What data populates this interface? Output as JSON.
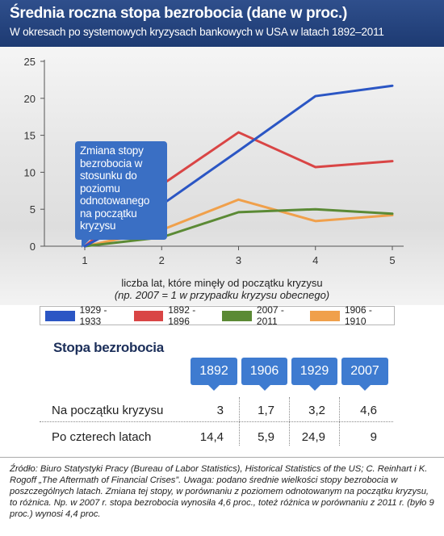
{
  "header": {
    "title": "Średnia roczna stopa bezrobocia (dane w proc.)",
    "subtitle": "W okresach po systemowych kryzysach bankowych w USA w latach 1892–2011"
  },
  "tooltip": "Zmiana stopy bezrobocia w stosunku do poziomu odnotowanego na początku kryzysu",
  "xlabel_line1": "liczba lat, które minęły od początku kryzysu",
  "xlabel_line2": "(np. 2007 = 1 w przypadku kryzysu obecnego)",
  "chart_data": {
    "type": "line",
    "x": [
      1,
      2,
      3,
      4,
      5
    ],
    "xlim": [
      1,
      5
    ],
    "ylim": [
      0,
      25
    ],
    "yticks": [
      0,
      5,
      10,
      15,
      20,
      25
    ],
    "grid": false,
    "legend": "bottom",
    "series": [
      {
        "name": "1929 - 1933",
        "color": "#2b56c4",
        "values": [
          0,
          5.6,
          12.9,
          20.3,
          21.7
        ]
      },
      {
        "name": "1892 - 1896",
        "color": "#d94545",
        "values": [
          0,
          8.3,
          15.4,
          10.7,
          11.5
        ]
      },
      {
        "name": "2007 - 2011",
        "color": "#5b8a35",
        "values": [
          0,
          1.2,
          4.6,
          5.0,
          4.4
        ]
      },
      {
        "name": "1906 - 1910",
        "color": "#f0a04b",
        "values": [
          0,
          2.2,
          6.3,
          3.4,
          4.2
        ]
      }
    ]
  },
  "table": {
    "title": "Stopa bezrobocia",
    "years": [
      "1892",
      "1906",
      "1929",
      "2007"
    ],
    "rows": [
      {
        "label": "Na początku kryzysu",
        "values": [
          "3",
          "1,7",
          "3,2",
          "4,6"
        ]
      },
      {
        "label": "Po czterech latach",
        "values": [
          "14,4",
          "5,9",
          "24,9",
          "9"
        ]
      }
    ]
  },
  "source": "Źródło: Biuro Statystyki Pracy (Bureau of Labor Statistics), Historical Statistics of the US; C. Reinhart i K. Rogoff „The Aftermath of Financial Crises”. Uwaga: podano średnie wielkości stopy bezrobocia w poszczególnych latach. Zmiana tej stopy, w porównaniu z poziomem odnotowanym na początku kryzysu, to różnica. Np. w 2007 r. stopa bezrobocia wynosiła 4,6 proc., toteż różnica w porównaniu z 2011 r. (było 9 proc.) wynosi 4,4 proc."
}
